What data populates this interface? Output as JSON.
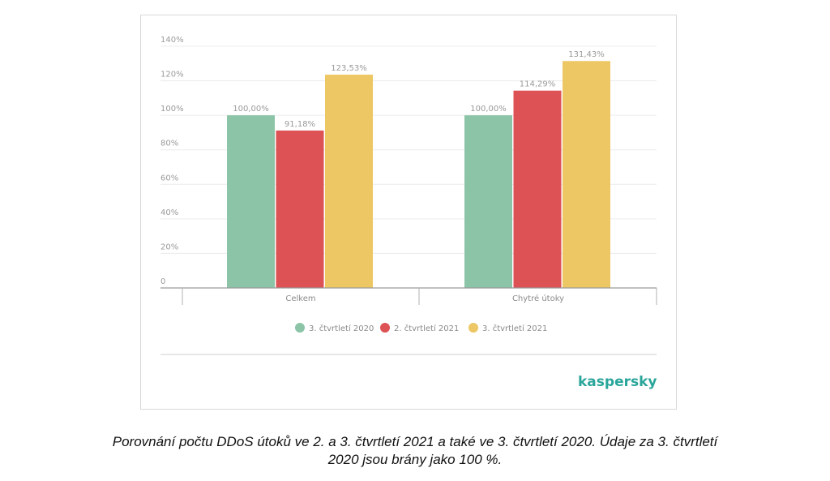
{
  "chart_data": {
    "type": "bar",
    "categories": [
      "Celkem",
      "Chytré útoky"
    ],
    "series": [
      {
        "name": "3. čtvrtletí 2020",
        "color": "#8cc4a8",
        "values": [
          100.0,
          100.0
        ],
        "labels": [
          "100,00%",
          "100,00%"
        ]
      },
      {
        "name": "2. čtvrtletí 2021",
        "color": "#dd5255",
        "values": [
          91.18,
          114.29
        ],
        "labels": [
          "91,18%",
          "114,29%"
        ]
      },
      {
        "name": "3. čtvrtletí 2021",
        "color": "#eec765",
        "values": [
          123.53,
          131.43
        ],
        "labels": [
          "123,53%",
          "131,43%"
        ]
      }
    ],
    "yticks": [
      {
        "value": 0,
        "label": "0"
      },
      {
        "value": 20,
        "label": "20%"
      },
      {
        "value": 40,
        "label": "40%"
      },
      {
        "value": 60,
        "label": "60%"
      },
      {
        "value": 80,
        "label": "80%"
      },
      {
        "value": 100,
        "label": "100%"
      },
      {
        "value": 120,
        "label": "120%"
      },
      {
        "value": 140,
        "label": "140%"
      }
    ],
    "ylim": [
      0,
      140
    ],
    "grid": true,
    "legend_position": "bottom"
  },
  "logo": "kaspersky",
  "caption": {
    "line1": "Porovnání počtu DDoS útoků ve 2. a 3. čtvrtletí 2021 a také ve 3. čtvrtletí 2020. Údaje za 3. čtvrtletí",
    "line2": "2020 jsou brány jako 100 %."
  }
}
